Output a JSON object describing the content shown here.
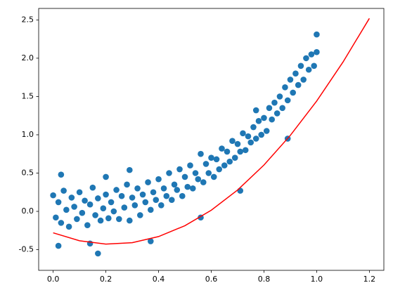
{
  "chart_data": {
    "type": "scatter",
    "xlim": [
      -0.055,
      1.255
    ],
    "ylim": [
      -0.77,
      2.65
    ],
    "xticks": [
      {
        "value": 0,
        "label": "0.0"
      },
      {
        "value": 0.2,
        "label": "0.2"
      },
      {
        "value": 0.4,
        "label": "0.4"
      },
      {
        "value": 0.6,
        "label": "0.6"
      },
      {
        "value": 0.8,
        "label": "0.8"
      },
      {
        "value": 1,
        "label": "1.0"
      },
      {
        "value": 1.2,
        "label": "1.2"
      }
    ],
    "yticks": [
      {
        "value": -0.5,
        "label": "-0.5"
      },
      {
        "value": 0,
        "label": "0.0"
      },
      {
        "value": 0.5,
        "label": "0.5"
      },
      {
        "value": 1,
        "label": "1.0"
      },
      {
        "value": 1.5,
        "label": "1.5"
      },
      {
        "value": 2,
        "label": "2.0"
      },
      {
        "value": 2.5,
        "label": "2.5"
      }
    ],
    "grid": false,
    "series": [
      {
        "type": "scatter",
        "color": "#1f77b4",
        "x": [
          0.0,
          0.01,
          0.02,
          0.03,
          0.04,
          0.05,
          0.06,
          0.07,
          0.08,
          0.09,
          0.1,
          0.11,
          0.12,
          0.13,
          0.14,
          0.15,
          0.16,
          0.17,
          0.18,
          0.19,
          0.2,
          0.21,
          0.22,
          0.23,
          0.24,
          0.25,
          0.26,
          0.27,
          0.28,
          0.29,
          0.3,
          0.31,
          0.32,
          0.33,
          0.34,
          0.35,
          0.36,
          0.37,
          0.38,
          0.39,
          0.4,
          0.41,
          0.42,
          0.43,
          0.44,
          0.45,
          0.46,
          0.47,
          0.48,
          0.49,
          0.5,
          0.51,
          0.52,
          0.53,
          0.54,
          0.55,
          0.56,
          0.57,
          0.58,
          0.59,
          0.6,
          0.61,
          0.62,
          0.63,
          0.64,
          0.65,
          0.66,
          0.67,
          0.68,
          0.69,
          0.7,
          0.71,
          0.72,
          0.73,
          0.74,
          0.75,
          0.76,
          0.77,
          0.78,
          0.79,
          0.8,
          0.81,
          0.82,
          0.83,
          0.84,
          0.85,
          0.86,
          0.87,
          0.88,
          0.89,
          0.9,
          0.91,
          0.92,
          0.93,
          0.94,
          0.95,
          0.96,
          0.97,
          0.98,
          0.99,
          1.0,
          0.02,
          0.03,
          0.17,
          0.37,
          0.56,
          0.77,
          0.89,
          1.0,
          0.14,
          0.71,
          0.2,
          0.29
        ],
        "values": [
          0.21,
          -0.08,
          0.12,
          -0.15,
          0.27,
          0.02,
          -0.2,
          0.18,
          0.06,
          -0.1,
          0.25,
          -0.02,
          0.14,
          -0.18,
          0.09,
          0.31,
          -0.05,
          0.17,
          -0.12,
          0.04,
          0.22,
          -0.09,
          0.12,
          0.0,
          0.28,
          -0.1,
          0.2,
          0.05,
          0.35,
          -0.12,
          0.18,
          0.08,
          0.3,
          -0.05,
          0.22,
          0.12,
          0.38,
          0.02,
          0.25,
          0.15,
          0.42,
          0.08,
          0.3,
          0.2,
          0.5,
          0.15,
          0.35,
          0.28,
          0.55,
          0.2,
          0.45,
          0.32,
          0.6,
          0.3,
          0.5,
          0.42,
          0.75,
          0.38,
          0.62,
          0.5,
          0.7,
          0.45,
          0.68,
          0.55,
          0.82,
          0.6,
          0.78,
          0.65,
          0.92,
          0.7,
          0.88,
          0.78,
          1.02,
          0.8,
          0.98,
          0.9,
          1.1,
          0.95,
          1.18,
          1.0,
          1.22,
          1.05,
          1.35,
          1.2,
          1.42,
          1.28,
          1.5,
          1.35,
          1.62,
          1.45,
          1.72,
          1.55,
          1.8,
          1.65,
          1.9,
          1.72,
          2.0,
          1.85,
          2.05,
          1.9,
          2.08,
          -0.45,
          0.48,
          -0.55,
          -0.39,
          -0.08,
          1.32,
          0.95,
          2.31,
          -0.42,
          0.27,
          0.45,
          0.54
        ]
      },
      {
        "type": "line",
        "color": "#ff0000",
        "x": [
          0,
          0.1,
          0.2,
          0.3,
          0.4,
          0.5,
          0.6,
          0.7,
          0.8,
          0.9,
          1.0,
          1.1,
          1.2
        ],
        "values": [
          -0.28,
          -0.384,
          -0.427,
          -0.409,
          -0.329,
          -0.187,
          0.015,
          0.279,
          0.605,
          0.992,
          1.44,
          1.95,
          2.52
        ]
      }
    ]
  }
}
